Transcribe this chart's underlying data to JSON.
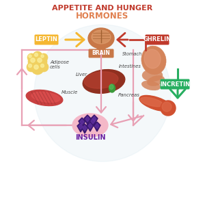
{
  "title_line1": "APPETITE AND HUNGER",
  "title_line2": "HORMONES",
  "title_color": "#c0392b",
  "title2_color": "#e08050",
  "bg_color": "#ffffff",
  "leptin_color": "#f5b731",
  "leptin_text": "LEPTIN",
  "ghrelin_color": "#c0392b",
  "ghrelin_text": "GHRELIN",
  "incretin_color": "#27ae60",
  "incretin_text": "INCRETIN",
  "insulin_color": "#6a1fa0",
  "insulin_text": "INSULIN",
  "brain_label": "BRAIN",
  "brain_label_color": "#d4845a",
  "adipose_label": "Adipose\ncells",
  "muscle_label": "Muscle",
  "liver_label": "Liver",
  "intestines_label": "Intestines",
  "stomach_label": "Stomach",
  "pancreas_label": "Pancreas",
  "arrow_pink": "#e8a0b4",
  "arrow_yellow": "#f5b731",
  "arrow_red": "#c0392b",
  "arrow_green": "#27ae60",
  "circle_bg": "#d8e8f0",
  "brain_color": "#c87848",
  "brain_inner": "#dfa070",
  "adipose_color": "#f0d060",
  "adipose_edge": "#c8a020",
  "muscle_color": "#c84040",
  "muscle_light": "#e05050",
  "stomach_color": "#d4845a",
  "stomach_light": "#e8a080",
  "liver_color": "#903020",
  "liver_light": "#b84030",
  "gallbladder_color": "#3a9a3a",
  "pancreas_color": "#d05030",
  "pancreas_light": "#e07050",
  "insulin_blob": "#f4b8c8",
  "insulin_crystal": "#3a1870",
  "insulin_crystal_light": "#6030a0"
}
